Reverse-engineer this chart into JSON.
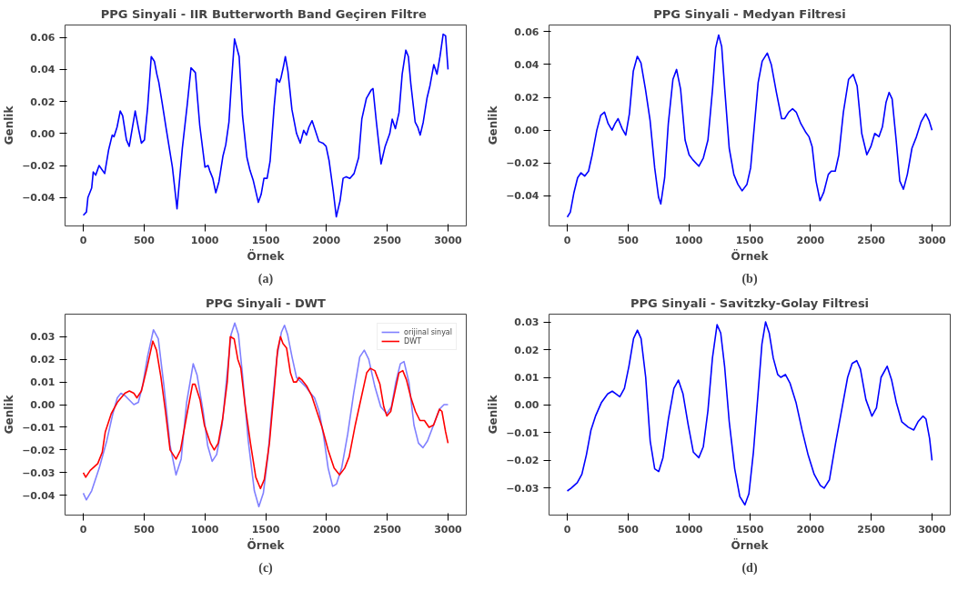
{
  "chart_data": [
    {
      "type": "line",
      "title": "PPG Sinyali - IIR Butterworth  Band Geçiren Filtre",
      "xlabel": "Örnek",
      "ylabel": "Genlik",
      "annotations": [
        "(a)"
      ],
      "grid": false,
      "legend": false,
      "xlim": [
        -150,
        3150
      ],
      "ylim": [
        -0.0577,
        0.0677
      ],
      "xticks": [
        0,
        500,
        1000,
        1500,
        2000,
        2500,
        3000
      ],
      "yticks": [
        {
          "value": -0.04,
          "label": "−0.04"
        },
        {
          "value": -0.02,
          "label": "−0.02"
        },
        {
          "value": 0,
          "label": "0.00"
        },
        {
          "value": 0.02,
          "label": "0.02"
        },
        {
          "value": 0.04,
          "label": "0.04"
        },
        {
          "value": 0.06,
          "label": "0.06"
        }
      ],
      "series": [
        {
          "color": "#0000ff",
          "x": [
            0,
            26,
            38,
            69,
            82,
            102,
            130,
            176,
            209,
            238,
            253,
            278,
            304,
            324,
            355,
            378,
            427,
            457,
            478,
            503,
            529,
            559,
            585,
            605,
            621,
            649,
            682,
            733,
            771,
            815,
            855,
            886,
            922,
            958,
            1001,
            1027,
            1039,
            1065,
            1090,
            1116,
            1149,
            1172,
            1198,
            1218,
            1244,
            1282,
            1310,
            1346,
            1371,
            1397,
            1440,
            1463,
            1486,
            1512,
            1537,
            1570,
            1591,
            1614,
            1627,
            1647,
            1662,
            1683,
            1716,
            1754,
            1785,
            1813,
            1836,
            1856,
            1882,
            1908,
            1938,
            1971,
            1997,
            2022,
            2056,
            2081,
            2112,
            2137,
            2163,
            2193,
            2227,
            2265,
            2291,
            2329,
            2367,
            2383,
            2411,
            2449,
            2483,
            2521,
            2541,
            2567,
            2597,
            2623,
            2653,
            2674,
            2694,
            2730,
            2751,
            2771,
            2796,
            2827,
            2852,
            2883,
            2909,
            2934,
            2960,
            2980,
            3000
          ],
          "values": [
            -0.051,
            -0.049,
            -0.04,
            -0.034,
            -0.024,
            -0.026,
            -0.02,
            -0.025,
            -0.01,
            -0.001,
            -0.002,
            0.004,
            0.014,
            0.011,
            -0.004,
            -0.008,
            0.014,
            0.002,
            -0.006,
            -0.004,
            0.016,
            0.048,
            0.045,
            0.037,
            0.032,
            0.019,
            0.003,
            -0.021,
            -0.047,
            -0.009,
            0.018,
            0.041,
            0.038,
            0.005,
            -0.021,
            -0.02,
            -0.023,
            -0.028,
            -0.037,
            -0.03,
            -0.014,
            -0.007,
            0.007,
            0.031,
            0.059,
            0.048,
            0.011,
            -0.015,
            -0.023,
            -0.029,
            -0.043,
            -0.038,
            -0.028,
            -0.028,
            -0.017,
            0.017,
            0.034,
            0.032,
            0.035,
            0.042,
            0.048,
            0.039,
            0.015,
            0.0,
            -0.006,
            0.002,
            -0.001,
            0.004,
            0.008,
            0.002,
            -0.005,
            -0.006,
            -0.008,
            -0.017,
            -0.036,
            -0.052,
            -0.042,
            -0.028,
            -0.027,
            -0.028,
            -0.025,
            -0.015,
            0.009,
            0.022,
            0.027,
            0.028,
            0.007,
            -0.019,
            -0.008,
            0.0,
            0.009,
            0.003,
            0.013,
            0.037,
            0.052,
            0.048,
            0.031,
            0.007,
            0.004,
            -0.001,
            0.007,
            0.022,
            0.03,
            0.043,
            0.037,
            0.048,
            0.062,
            0.061,
            0.04
          ]
        }
      ]
    },
    {
      "type": "line",
      "title": "PPG Sinyali - Medyan Filtresi",
      "xlabel": "Örnek",
      "ylabel": "Genlik",
      "annotations": [
        "(b)"
      ],
      "grid": false,
      "legend": false,
      "xlim": [
        -150,
        3150
      ],
      "ylim": [
        -0.0584,
        0.0641
      ],
      "xticks": [
        0,
        500,
        1000,
        1500,
        2000,
        2500,
        3000
      ],
      "yticks": [
        {
          "value": -0.04,
          "label": "−0.04"
        },
        {
          "value": -0.02,
          "label": "−0.02"
        },
        {
          "value": 0,
          "label": "0.00"
        },
        {
          "value": 0.02,
          "label": "0.02"
        },
        {
          "value": 0.04,
          "label": "0.04"
        },
        {
          "value": 0.06,
          "label": "0.06"
        }
      ],
      "series": [
        {
          "color": "#0000ff",
          "x": [
            0,
            25,
            55,
            85,
            113,
            143,
            175,
            205,
            243,
            275,
            306,
            336,
            368,
            393,
            418,
            451,
            481,
            511,
            543,
            576,
            606,
            643,
            681,
            719,
            751,
            769,
            801,
            831,
            869,
            899,
            932,
            969,
            1002,
            1032,
            1082,
            1119,
            1157,
            1195,
            1220,
            1245,
            1270,
            1295,
            1332,
            1370,
            1403,
            1438,
            1478,
            1508,
            1538,
            1570,
            1603,
            1645,
            1678,
            1720,
            1763,
            1788,
            1821,
            1853,
            1883,
            1921,
            1959,
            1988,
            2014,
            2046,
            2079,
            2109,
            2147,
            2171,
            2204,
            2234,
            2271,
            2314,
            2352,
            2384,
            2422,
            2464,
            2497,
            2529,
            2564,
            2592,
            2622,
            2647,
            2672,
            2705,
            2735,
            2765,
            2797,
            2835,
            2872,
            2910,
            2948,
            2975,
            3000
          ],
          "values": [
            -0.053,
            -0.05,
            -0.038,
            -0.029,
            -0.026,
            -0.028,
            -0.025,
            -0.015,
            0.0,
            0.009,
            0.011,
            0.004,
            0.0,
            0.004,
            0.007,
            0.001,
            -0.003,
            0.01,
            0.036,
            0.045,
            0.041,
            0.025,
            0.006,
            -0.023,
            -0.041,
            -0.045,
            -0.029,
            0.004,
            0.031,
            0.037,
            0.025,
            -0.006,
            -0.015,
            -0.018,
            -0.022,
            -0.017,
            -0.006,
            0.025,
            0.05,
            0.058,
            0.051,
            0.025,
            -0.011,
            -0.027,
            -0.033,
            -0.037,
            -0.033,
            -0.023,
            0.002,
            0.029,
            0.042,
            0.047,
            0.04,
            0.023,
            0.007,
            0.007,
            0.011,
            0.013,
            0.011,
            0.004,
            -0.001,
            -0.004,
            -0.01,
            -0.031,
            -0.043,
            -0.038,
            -0.027,
            -0.025,
            -0.025,
            -0.015,
            0.011,
            0.031,
            0.034,
            0.027,
            -0.002,
            -0.015,
            -0.01,
            -0.002,
            -0.004,
            0.002,
            0.017,
            0.023,
            0.019,
            -0.006,
            -0.031,
            -0.036,
            -0.027,
            -0.011,
            -0.004,
            0.005,
            0.01,
            0.006,
            0.0
          ]
        }
      ]
    },
    {
      "type": "line",
      "title": "PPG Sinyali - DWT",
      "xlabel": "Örnek",
      "ylabel": "Genlik",
      "annotations": [
        "(c)"
      ],
      "grid": false,
      "legend": "top right",
      "xlim": [
        -150,
        3150
      ],
      "ylim": [
        -0.0487,
        0.0399
      ],
      "xticks": [
        0,
        500,
        1000,
        1500,
        2000,
        2500,
        3000
      ],
      "yticks": [
        {
          "value": -0.04,
          "label": "−0.04"
        },
        {
          "value": -0.03,
          "label": "−0.03"
        },
        {
          "value": -0.02,
          "label": "−0.02"
        },
        {
          "value": -0.01,
          "label": "−0.01"
        },
        {
          "value": 0,
          "label": "0.00"
        },
        {
          "value": 0.01,
          "label": "0.01"
        },
        {
          "value": 0.02,
          "label": "0.02"
        },
        {
          "value": 0.03,
          "label": "0.03"
        }
      ],
      "series": [
        {
          "name": "orijinal sinyal",
          "color": "#8080ff",
          "x": [
            0,
            25,
            69,
            131,
            193,
            243,
            280,
            310,
            342,
            379,
            416,
            453,
            490,
            528,
            577,
            617,
            664,
            714,
            763,
            805,
            850,
            904,
            936,
            986,
            1023,
            1060,
            1097,
            1142,
            1184,
            1216,
            1246,
            1276,
            1308,
            1357,
            1407,
            1444,
            1481,
            1518,
            1556,
            1593,
            1630,
            1655,
            1680,
            1717,
            1754,
            1791,
            1828,
            1870,
            1902,
            1940,
            1977,
            2014,
            2051,
            2083,
            2125,
            2175,
            2224,
            2274,
            2311,
            2348,
            2398,
            2447,
            2497,
            2534,
            2571,
            2608,
            2638,
            2678,
            2720,
            2757,
            2794,
            2831,
            2881,
            2930,
            2967,
            3000
          ],
          "values": [
            -0.039,
            -0.042,
            -0.038,
            -0.028,
            -0.016,
            -0.004,
            0.003,
            0.005,
            0.004,
            0.002,
            0.0,
            0.001,
            0.009,
            0.021,
            0.033,
            0.029,
            0.008,
            -0.018,
            -0.031,
            -0.024,
            0.001,
            0.018,
            0.013,
            -0.003,
            -0.018,
            -0.025,
            -0.022,
            -0.009,
            0.014,
            0.031,
            0.036,
            0.031,
            0.014,
            -0.016,
            -0.038,
            -0.045,
            -0.039,
            -0.023,
            0.001,
            0.021,
            0.032,
            0.035,
            0.031,
            0.021,
            0.012,
            0.01,
            0.008,
            0.005,
            0.003,
            -0.003,
            -0.014,
            -0.028,
            -0.036,
            -0.035,
            -0.028,
            -0.013,
            0.005,
            0.021,
            0.024,
            0.02,
            0.008,
            -0.001,
            -0.004,
            -0.001,
            0.01,
            0.018,
            0.019,
            0.01,
            -0.009,
            -0.017,
            -0.019,
            -0.016,
            -0.009,
            -0.002,
            0.0,
            0.0
          ]
        },
        {
          "name": "DWT",
          "color": "#ff0000",
          "x": [
            0,
            20,
            57,
            119,
            156,
            181,
            230,
            280,
            342,
            379,
            416,
            441,
            478,
            523,
            572,
            602,
            639,
            676,
            714,
            763,
            800,
            850,
            899,
            919,
            961,
            996,
            1046,
            1077,
            1110,
            1147,
            1184,
            1209,
            1241,
            1271,
            1296,
            1333,
            1375,
            1419,
            1457,
            1489,
            1531,
            1568,
            1598,
            1622,
            1642,
            1672,
            1704,
            1729,
            1754,
            1774,
            1796,
            1840,
            1878,
            1915,
            1964,
            2014,
            2063,
            2108,
            2150,
            2187,
            2237,
            2286,
            2331,
            2361,
            2398,
            2440,
            2472,
            2497,
            2529,
            2564,
            2596,
            2628,
            2658,
            2695,
            2732,
            2769,
            2806,
            2844,
            2881,
            2930,
            2950,
            2980,
            3000
          ],
          "values": [
            -0.03,
            -0.032,
            -0.029,
            -0.026,
            -0.021,
            -0.012,
            -0.004,
            0.001,
            0.005,
            0.006,
            0.005,
            0.003,
            0.006,
            0.016,
            0.028,
            0.024,
            0.012,
            -0.003,
            -0.02,
            -0.024,
            -0.02,
            -0.005,
            0.009,
            0.009,
            0.002,
            -0.009,
            -0.017,
            -0.02,
            -0.017,
            -0.006,
            0.01,
            0.03,
            0.029,
            0.02,
            0.016,
            -0.001,
            -0.017,
            -0.032,
            -0.037,
            -0.033,
            -0.017,
            0.005,
            0.024,
            0.03,
            0.027,
            0.025,
            0.014,
            0.01,
            0.01,
            0.012,
            0.011,
            0.008,
            0.004,
            -0.002,
            -0.01,
            -0.02,
            -0.028,
            -0.031,
            -0.028,
            -0.023,
            -0.009,
            0.003,
            0.014,
            0.016,
            0.015,
            0.009,
            -0.001,
            -0.005,
            -0.003,
            0.006,
            0.014,
            0.015,
            0.011,
            0.003,
            -0.003,
            -0.007,
            -0.007,
            -0.01,
            -0.009,
            -0.002,
            -0.003,
            -0.012,
            -0.017
          ]
        }
      ]
    },
    {
      "type": "line",
      "title": "PPG Sinyali - Savitzky-Golay Filtresi",
      "xlabel": "Örnek",
      "ylabel": "Genlik",
      "annotations": [
        "(d)"
      ],
      "grid": false,
      "legend": false,
      "xlim": [
        -150,
        3150
      ],
      "ylim": [
        -0.0397,
        0.0328
      ],
      "xticks": [
        0,
        500,
        1000,
        1500,
        2000,
        2500,
        3000
      ],
      "yticks": [
        {
          "value": -0.03,
          "label": "−0.03"
        },
        {
          "value": -0.02,
          "label": "−0.02"
        },
        {
          "value": -0.01,
          "label": "−0.01"
        },
        {
          "value": 0,
          "label": "0.00"
        },
        {
          "value": 0.01,
          "label": "0.01"
        },
        {
          "value": 0.02,
          "label": "0.02"
        },
        {
          "value": 0.03,
          "label": "0.03"
        }
      ],
      "series": [
        {
          "color": "#0000ff",
          "x": [
            0,
            32,
            82,
            120,
            157,
            195,
            232,
            282,
            332,
            370,
            402,
            432,
            470,
            507,
            545,
            577,
            607,
            645,
            682,
            719,
            752,
            787,
            832,
            877,
            914,
            952,
            994,
            1037,
            1082,
            1119,
            1157,
            1194,
            1232,
            1262,
            1294,
            1332,
            1377,
            1419,
            1461,
            1494,
            1531,
            1569,
            1601,
            1631,
            1661,
            1694,
            1731,
            1756,
            1794,
            1831,
            1881,
            1931,
            1981,
            2031,
            2081,
            2113,
            2156,
            2206,
            2256,
            2306,
            2343,
            2381,
            2411,
            2456,
            2506,
            2543,
            2581,
            2631,
            2668,
            2706,
            2751,
            2805,
            2850,
            2885,
            2925,
            2950,
            2980,
            3000
          ],
          "values": [
            -0.031,
            -0.03,
            -0.028,
            -0.025,
            -0.018,
            -0.009,
            -0.004,
            0.001,
            0.004,
            0.005,
            0.004,
            0.003,
            0.006,
            0.014,
            0.024,
            0.027,
            0.024,
            0.01,
            -0.013,
            -0.023,
            -0.024,
            -0.019,
            -0.005,
            0.006,
            0.009,
            0.004,
            -0.007,
            -0.017,
            -0.019,
            -0.015,
            -0.002,
            0.017,
            0.029,
            0.026,
            0.014,
            -0.006,
            -0.023,
            -0.033,
            -0.036,
            -0.032,
            -0.017,
            0.004,
            0.022,
            0.03,
            0.026,
            0.017,
            0.011,
            0.01,
            0.011,
            0.008,
            0.001,
            -0.009,
            -0.018,
            -0.025,
            -0.029,
            -0.03,
            -0.027,
            -0.014,
            -0.002,
            0.01,
            0.015,
            0.016,
            0.013,
            0.002,
            -0.004,
            -0.001,
            0.01,
            0.014,
            0.009,
            0.001,
            -0.006,
            -0.008,
            -0.009,
            -0.006,
            -0.004,
            -0.005,
            -0.012,
            -0.02
          ]
        }
      ]
    }
  ]
}
